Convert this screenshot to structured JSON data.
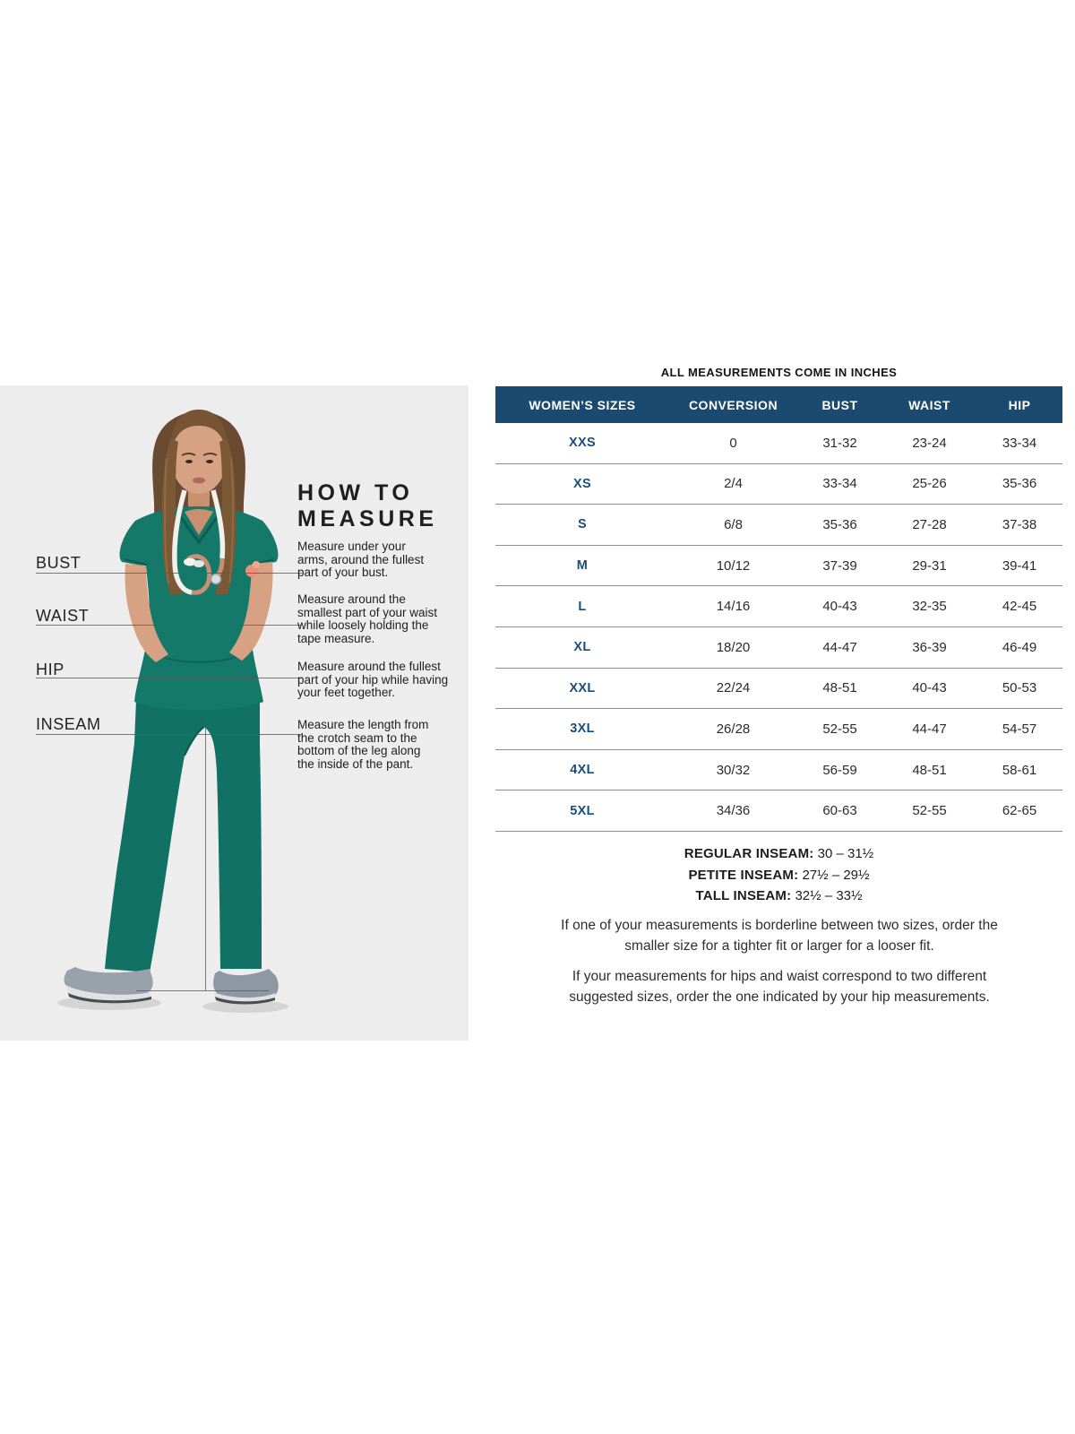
{
  "page": {
    "title": "ALL MEASUREMENTS COME IN INCHES"
  },
  "measure_guide": {
    "heading": "HOW TO\nMEASURE",
    "labels": [
      "BUST",
      "WAIST",
      "HIP",
      "INSEAM"
    ],
    "instructions": [
      "Measure under your\narms, around the fullest\npart of your bust.",
      "Measure around the\nsmallest part of your waist\nwhile loosely holding the\ntape measure.",
      "Measure around the fullest\npart of your hip while having\nyour feet together.",
      "Measure the length from\nthe crotch seam to the\nbottom of the leg along\nthe inside of the pant."
    ]
  },
  "size_table": {
    "columns": [
      "WOMEN’S SIZES",
      "CONVERSION",
      "BUST",
      "WAIST",
      "HIP"
    ],
    "rows": [
      {
        "size": "XXS",
        "conversion": "0",
        "bust": "31-32",
        "waist": "23-24",
        "hip": "33-34"
      },
      {
        "size": "XS",
        "conversion": "2/4",
        "bust": "33-34",
        "waist": "25-26",
        "hip": "35-36"
      },
      {
        "size": "S",
        "conversion": "6/8",
        "bust": "35-36",
        "waist": "27-28",
        "hip": "37-38"
      },
      {
        "size": "M",
        "conversion": "10/12",
        "bust": "37-39",
        "waist": "29-31",
        "hip": "39-41"
      },
      {
        "size": "L",
        "conversion": "14/16",
        "bust": "40-43",
        "waist": "32-35",
        "hip": "42-45"
      },
      {
        "size": "XL",
        "conversion": "18/20",
        "bust": "44-47",
        "waist": "36-39",
        "hip": "46-49"
      },
      {
        "size": "XXL",
        "conversion": "22/24",
        "bust": "48-51",
        "waist": "40-43",
        "hip": "50-53"
      },
      {
        "size": "3XL",
        "conversion": "26/28",
        "bust": "52-55",
        "waist": "44-47",
        "hip": "54-57"
      },
      {
        "size": "4XL",
        "conversion": "30/32",
        "bust": "56-59",
        "waist": "48-51",
        "hip": "58-61"
      },
      {
        "size": "5XL",
        "conversion": "34/36",
        "bust": "60-63",
        "waist": "52-55",
        "hip": "62-65"
      }
    ]
  },
  "inseam_notes": [
    {
      "label": "REGULAR INSEAM:",
      "value": "30 – 31½"
    },
    {
      "label": "PETITE INSEAM:",
      "value": "27½ – 29½"
    },
    {
      "label": "TALL INSEAM:",
      "value": "32½ – 33½"
    }
  ],
  "footnotes": [
    "If one of your measurements is borderline between two sizes, order the\nsmaller size for a tighter fit or larger for a looser fit.",
    "If your measurements for hips and waist correspond to two different\nsuggested sizes, order the one indicated by your hip measurements."
  ],
  "colors": {
    "table_header_bg": "#1a4a70",
    "size_label_text": "#1b4d7d",
    "panel_bg": "#ededed",
    "scrub_teal": "#15796a",
    "row_divider": "#8f8f8f"
  }
}
